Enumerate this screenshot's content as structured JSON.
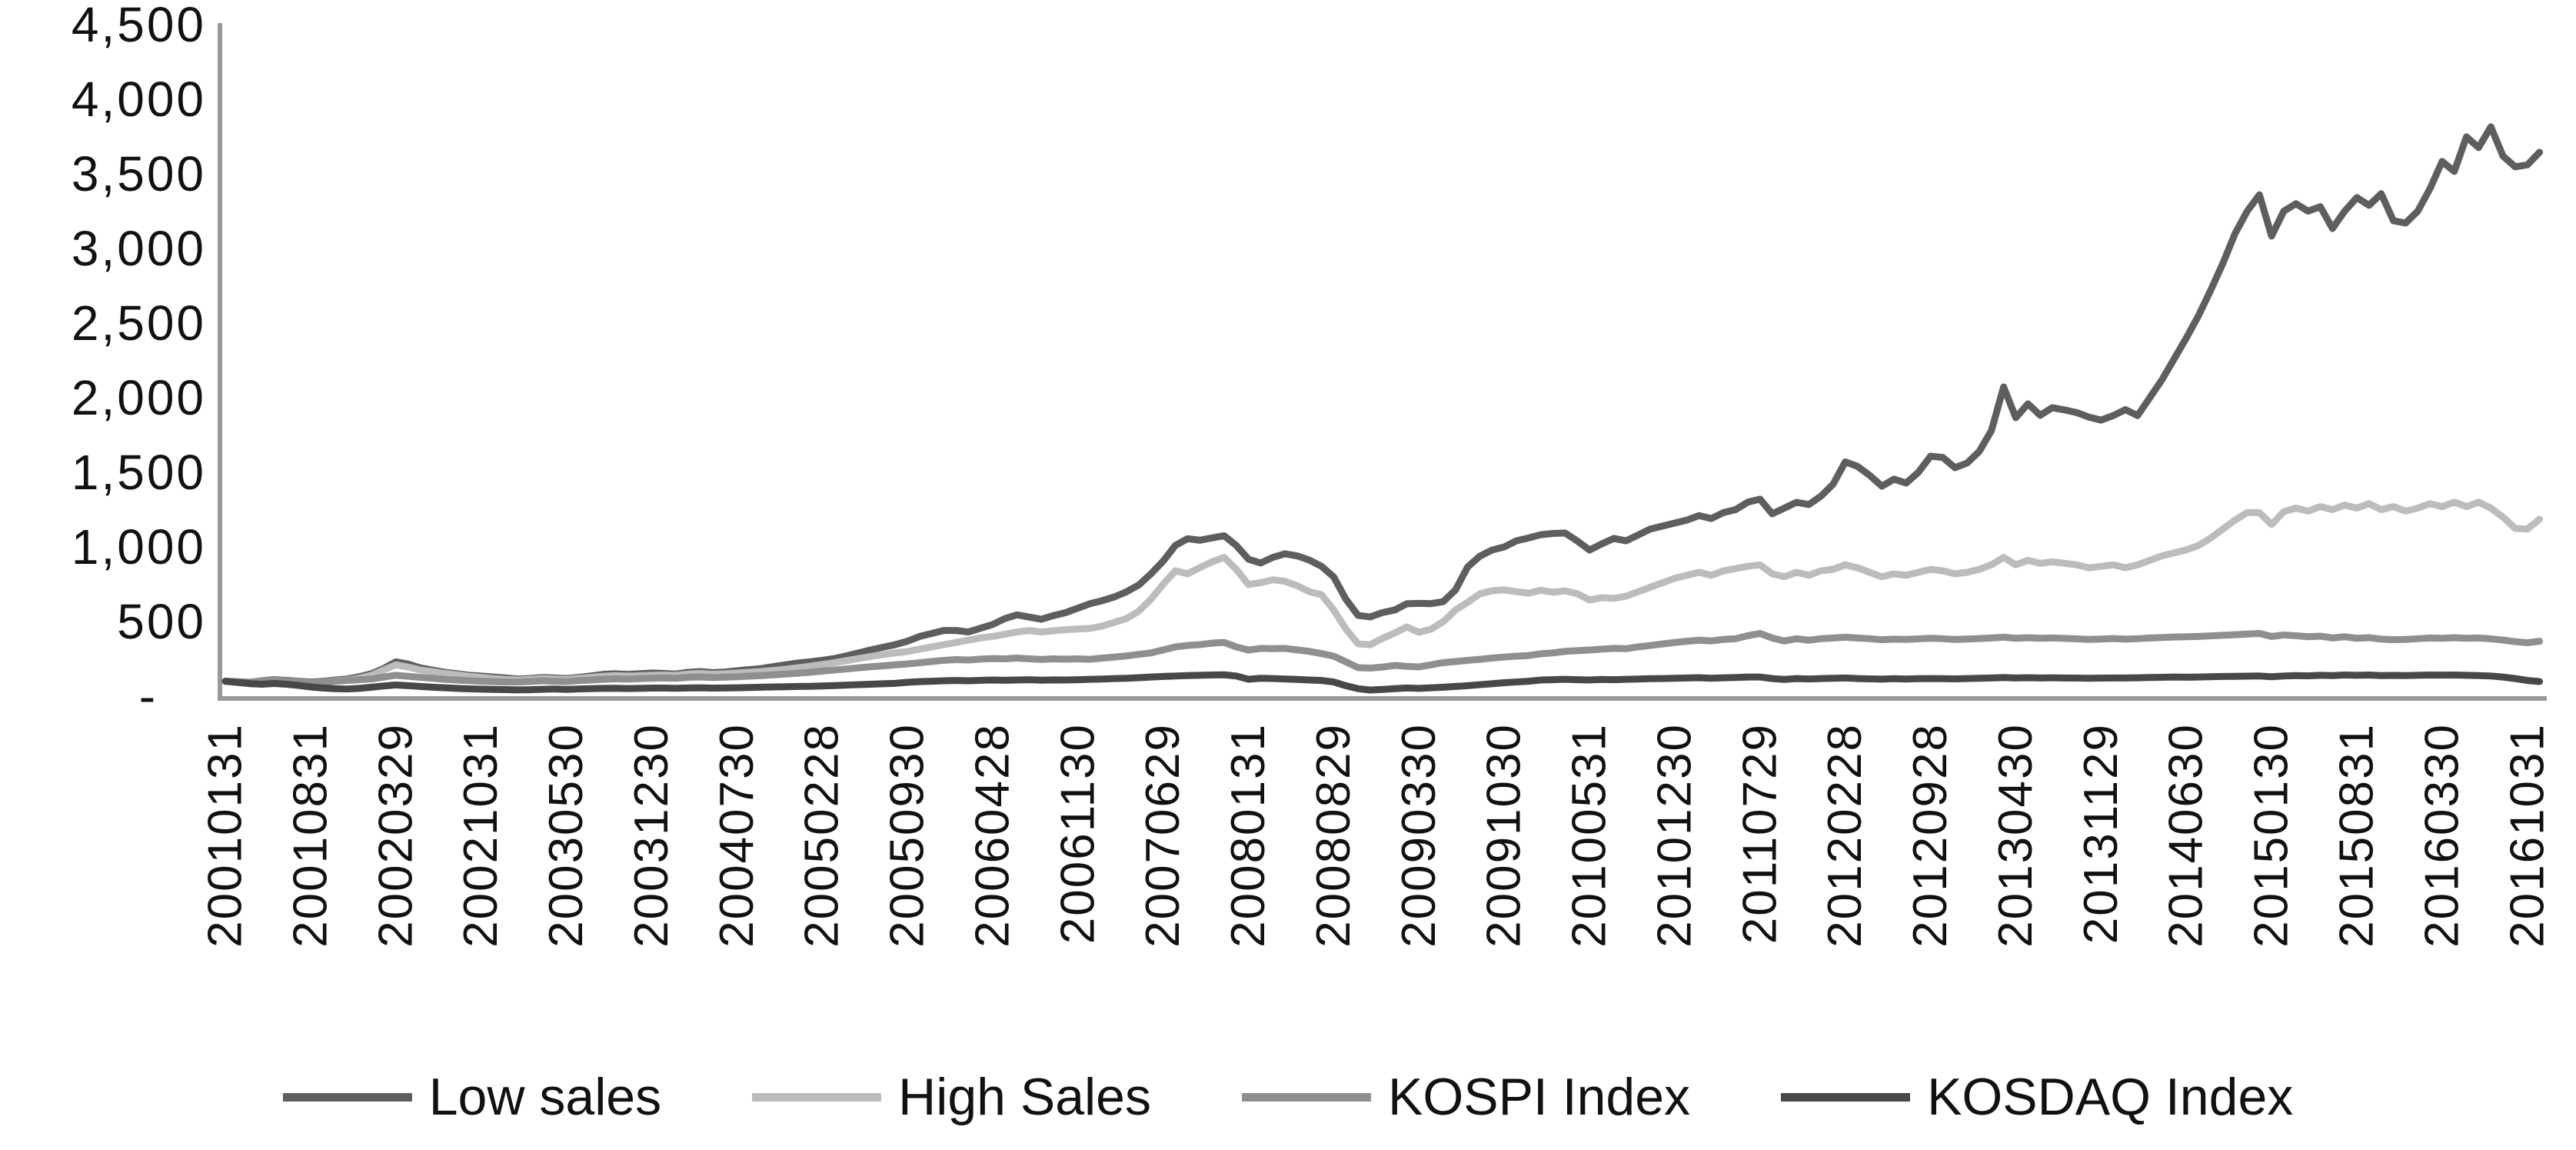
{
  "chart_data": {
    "type": "line",
    "title": "",
    "grid": false,
    "background": "#ffffff",
    "axis_color": "#999999",
    "text_color": "#111111",
    "legend_position": "bottom",
    "y_axis": {
      "min": 0,
      "max": 4500,
      "step": 500,
      "tick_labels": [
        "4,500",
        "4,000",
        "3,500",
        "3,000",
        "2,500",
        "2,000",
        "1,500",
        "1,000",
        "500",
        "-"
      ]
    },
    "x_axis": {
      "unit": "month",
      "months_per_tick": 7,
      "tick_labels": [
        "20010131",
        "20010831",
        "20020329",
        "20021031",
        "20030530",
        "20031230",
        "20040730",
        "20050228",
        "20050930",
        "20060428",
        "20061130",
        "20070629",
        "20080131",
        "20080829",
        "20090330",
        "20091030",
        "20100531",
        "20101230",
        "20110729",
        "20120228",
        "20120928",
        "20130430",
        "20131129",
        "20140630",
        "20150130",
        "20150831",
        "20160330",
        "20161031"
      ]
    },
    "series": [
      {
        "name": "Low sales",
        "color": "#5e5e5e",
        "values": [
          100,
          96,
          92,
          103,
          110,
          106,
          100,
          95,
          99,
          108,
          115,
          130,
          150,
          185,
          230,
          215,
          190,
          175,
          160,
          150,
          140,
          135,
          128,
          122,
          115,
          118,
          125,
          122,
          118,
          126,
          135,
          146,
          150,
          146,
          150,
          155,
          152,
          148,
          160,
          165,
          158,
          162,
          170,
          178,
          185,
          198,
          210,
          222,
          230,
          240,
          252,
          270,
          290,
          310,
          328,
          345,
          368,
          400,
          420,
          440,
          440,
          430,
          455,
          480,
          520,
          545,
          530,
          515,
          540,
          560,
          590,
          620,
          640,
          665,
          700,
          745,
          820,
          905,
          1010,
          1055,
          1045,
          1060,
          1075,
          1010,
          918,
          892,
          930,
          954,
          940,
          912,
          870,
          799,
          650,
          541,
          531,
          560,
          577,
          619,
          622,
          620,
          634,
          712,
          866,
          938,
          979,
          1000,
          1041,
          1060,
          1082,
          1090,
          1093,
          1040,
          979,
          1020,
          1057,
          1041,
          1080,
          1120,
          1140,
          1160,
          1180,
          1210,
          1190,
          1230,
          1250,
          1300,
          1320,
          1222,
          1260,
          1299,
          1284,
          1340,
          1420,
          1570,
          1540,
          1480,
          1407,
          1454,
          1428,
          1500,
          1608,
          1600,
          1531,
          1562,
          1640,
          1780,
          2072,
          1866,
          1959,
          1882,
          1933,
          1918,
          1900,
          1870,
          1850,
          1880,
          1920,
          1880,
          2000,
          2120,
          2260,
          2400,
          2550,
          2720,
          2900,
          3100,
          3250,
          3360,
          3083,
          3250,
          3300,
          3250,
          3280,
          3134,
          3250,
          3341,
          3289,
          3367,
          3186,
          3170,
          3250,
          3400,
          3583,
          3516,
          3748,
          3676,
          3815,
          3619,
          3547,
          3560,
          3645
        ]
      },
      {
        "name": "High Sales",
        "color": "#bcbcbc",
        "values": [
          100,
          95,
          90,
          100,
          105,
          101,
          96,
          90,
          94,
          102,
          108,
          120,
          140,
          175,
          210,
          195,
          175,
          165,
          152,
          143,
          133,
          126,
          118,
          112,
          108,
          112,
          118,
          115,
          112,
          119,
          126,
          133,
          138,
          134,
          137,
          140,
          142,
          139,
          148,
          152,
          147,
          150,
          155,
          160,
          165,
          172,
          180,
          190,
          200,
          212,
          224,
          238,
          252,
          266,
          278,
          290,
          299,
          315,
          330,
          345,
          360,
          375,
          390,
          400,
          415,
          430,
          440,
          430,
          438,
          445,
          450,
          454,
          470,
          495,
          520,
          570,
          650,
          750,
          840,
          820,
          861,
          900,
          930,
          850,
          748,
          760,
          780,
          770,
          740,
          700,
          680,
          577,
          450,
          351,
          345,
          387,
          423,
          464,
          428,
          449,
          500,
          577,
          629,
          686,
          706,
          712,
          700,
          690,
          710,
          696,
          706,
          686,
          644,
          660,
          655,
          670,
          700,
          730,
          760,
          790,
          810,
          830,
          810,
          840,
          855,
          870,
          880,
          820,
          800,
          830,
          810,
          840,
          850,
          880,
          860,
          830,
          800,
          820,
          810,
          830,
          850,
          840,
          820,
          830,
          850,
          880,
          930,
          880,
          910,
          890,
          900,
          890,
          880,
          860,
          870,
          880,
          860,
          880,
          910,
          940,
          960,
          980,
          1010,
          1060,
          1120,
          1180,
          1230,
          1230,
          1150,
          1237,
          1260,
          1240,
          1270,
          1250,
          1280,
          1260,
          1290,
          1250,
          1270,
          1240,
          1260,
          1290,
          1270,
          1300,
          1270,
          1300,
          1260,
          1200,
          1124,
          1119,
          1186
        ]
      },
      {
        "name": "KOSPI Index",
        "color": "#8f8f8f",
        "values": [
          100,
          97,
          94,
          102,
          106,
          102,
          97,
          92,
          95,
          100,
          105,
          110,
          115,
          128,
          140,
          133,
          126,
          120,
          113,
          108,
          104,
          100,
          97,
          95,
          95,
          98,
          103,
          100,
          98,
          104,
          108,
          113,
          116,
          114,
          117,
          120,
          122,
          120,
          126,
          129,
          125,
          127,
          130,
          134,
          138,
          143,
          148,
          154,
          160,
          168,
          175,
          182,
          190,
          197,
          203,
          210,
          216,
          224,
          232,
          240,
          245,
          242,
          248,
          252,
          250,
          255,
          250,
          246,
          250,
          248,
          250,
          247,
          255,
          262,
          270,
          280,
          290,
          310,
          330,
          340,
          345,
          355,
          360,
          330,
          309,
          320,
          318,
          320,
          310,
          300,
          285,
          268,
          230,
          191,
          188,
          195,
          206,
          200,
          196,
          210,
          225,
          232,
          240,
          247,
          255,
          262,
          268,
          272,
          284,
          290,
          300,
          305,
          309,
          315,
          320,
          318,
          330,
          340,
          350,
          360,
          368,
          375,
          370,
          380,
          385,
          405,
          420,
          390,
          370,
          385,
          375,
          385,
          390,
          395,
          390,
          385,
          378,
          382,
          380,
          384,
          388,
          385,
          380,
          383,
          386,
          390,
          395,
          388,
          392,
          388,
          390,
          387,
          384,
          380,
          383,
          386,
          382,
          385,
          390,
          393,
          396,
          398,
          400,
          404,
          408,
          412,
          416,
          420,
          400,
          410,
          405,
          398,
          402,
          390,
          398,
          388,
          392,
          382,
          378,
          380,
          385,
          390,
          388,
          392,
          388,
          390,
          384,
          376,
          365,
          358,
          368
        ]
      },
      {
        "name": "KOSDAQ Index",
        "color": "#484848",
        "values": [
          100,
          92,
          84,
          80,
          85,
          80,
          72,
          62,
          55,
          50,
          48,
          52,
          60,
          68,
          75,
          70,
          65,
          60,
          56,
          52,
          49,
          47,
          45,
          44,
          42,
          43,
          46,
          48,
          45,
          48,
          50,
          52,
          53,
          51,
          52,
          54,
          54,
          53,
          55,
          56,
          54,
          55,
          56,
          58,
          60,
          62,
          63,
          65,
          66,
          68,
          71,
          74,
          77,
          80,
          83,
          86,
          93,
          97,
          100,
          103,
          105,
          103,
          106,
          108,
          106,
          108,
          110,
          107,
          109,
          108,
          110,
          113,
          115,
          118,
          120,
          124,
          128,
          132,
          135,
          138,
          140,
          142,
          143,
          135,
          113,
          120,
          118,
          115,
          112,
          108,
          105,
          95,
          70,
          50,
          41,
          45,
          50,
          55,
          52,
          56,
          60,
          65,
          70,
          77,
          83,
          90,
          95,
          100,
          108,
          110,
          113,
          110,
          108,
          112,
          110,
          113,
          115,
          117,
          118,
          120,
          122,
          124,
          120,
          123,
          125,
          128,
          128,
          118,
          112,
          118,
          115,
          118,
          120,
          122,
          118,
          116,
          114,
          117,
          115,
          117,
          118,
          117,
          116,
          118,
          120,
          122,
          125,
          122,
          124,
          122,
          123,
          122,
          121,
          120,
          121,
          122,
          122,
          123,
          125,
          126,
          128,
          127,
          128,
          130,
          132,
          133,
          134,
          135,
          130,
          135,
          138,
          136,
          140,
          138,
          142,
          140,
          142,
          138,
          139,
          138,
          140,
          142,
          141,
          142,
          140,
          138,
          135,
          128,
          118,
          105,
          98
        ]
      }
    ]
  }
}
